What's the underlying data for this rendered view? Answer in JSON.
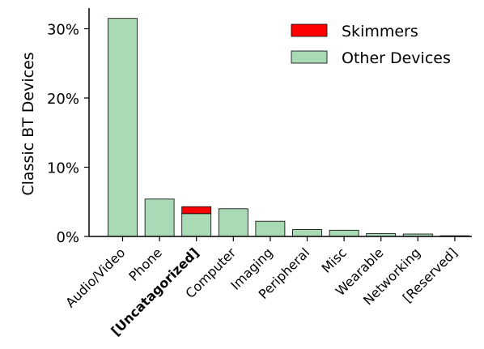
{
  "chart_data": {
    "type": "bar",
    "stacked": true,
    "title": "",
    "xlabel": "",
    "ylabel": "Classic BT Devices",
    "ylim": [
      0,
      33
    ],
    "yticks": [
      0,
      10,
      20,
      30
    ],
    "ytick_labels": [
      "0%",
      "10%",
      "20%",
      "30%"
    ],
    "grid": false,
    "legend_position": "top-right",
    "categories": [
      "Audio/Video",
      "Phone",
      "[Uncatagorized]",
      "Computer",
      "Imaging",
      "Peripheral",
      "Misc",
      "Wearable",
      "Networking",
      "[Reserved]"
    ],
    "bold_categories": [
      "[Uncatagorized]"
    ],
    "series": [
      {
        "name": "Other Devices",
        "color": "#a8dab5",
        "values": [
          31.5,
          5.4,
          3.3,
          4.0,
          2.2,
          1.0,
          0.9,
          0.4,
          0.35,
          0.1
        ]
      },
      {
        "name": "Skimmers",
        "color": "#ff0000",
        "values": [
          0,
          0,
          1.0,
          0,
          0,
          0,
          0,
          0,
          0,
          0
        ]
      }
    ]
  }
}
